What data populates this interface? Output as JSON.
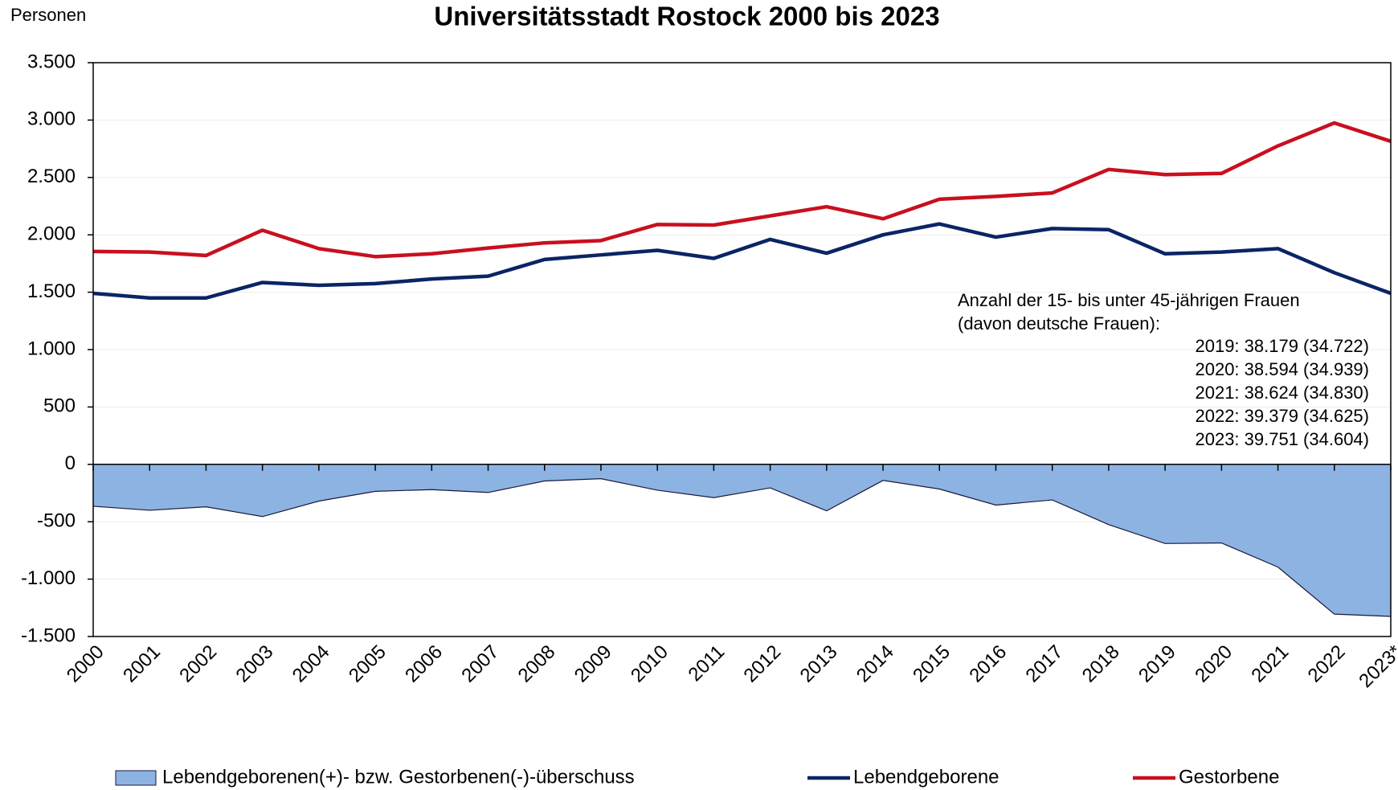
{
  "chart_data": {
    "type": "line",
    "title": "Universitätsstadt Rostock 2000 bis 2023",
    "y_label": "Personen",
    "categories": [
      "2000",
      "2001",
      "2002",
      "2003",
      "2004",
      "2005",
      "2006",
      "2007",
      "2008",
      "2009",
      "2010",
      "2011",
      "2012",
      "2013",
      "2014",
      "2015",
      "2016",
      "2017",
      "2018",
      "2019",
      "2020",
      "2021",
      "2022",
      "2023*"
    ],
    "series": [
      {
        "name": "Lebendgeborenen(+)- bzw. Gestorbenen(-)-überschuss",
        "kind": "area",
        "color": "#8db3e2",
        "values": [
          -365,
          -400,
          -370,
          -455,
          -320,
          -235,
          -220,
          -245,
          -145,
          -125,
          -225,
          -290,
          -205,
          -405,
          -140,
          -215,
          -355,
          -310,
          -525,
          -690,
          -685,
          -895,
          -1305,
          -1325
        ]
      },
      {
        "name": "Lebendgeborene",
        "kind": "line",
        "color": "#0a2466",
        "values": [
          1490,
          1450,
          1450,
          1585,
          1560,
          1575,
          1615,
          1640,
          1785,
          1825,
          1865,
          1795,
          1960,
          1840,
          2000,
          2095,
          1980,
          2055,
          2045,
          1835,
          1850,
          1880,
          1670,
          1490
        ]
      },
      {
        "name": "Gestorbene",
        "kind": "line",
        "color": "#c8101e",
        "values": [
          1855,
          1850,
          1820,
          2040,
          1880,
          1810,
          1835,
          1885,
          1930,
          1950,
          2090,
          2085,
          2165,
          2245,
          2140,
          2310,
          2335,
          2365,
          2570,
          2525,
          2535,
          2775,
          2975,
          2815
        ]
      }
    ],
    "ylim": [
      -1500,
      3500
    ],
    "yticks": [
      {
        "value": -1500,
        "label": "-1.500"
      },
      {
        "value": -1000,
        "label": "-1.000"
      },
      -500,
      0,
      500,
      {
        "value": 1000,
        "label": "1.000"
      },
      {
        "value": 1500,
        "label": "1.500"
      },
      {
        "value": 2000,
        "label": "2.000"
      },
      {
        "value": 2500,
        "label": "2.500"
      },
      {
        "value": 3000,
        "label": "3.000"
      },
      {
        "value": 3500,
        "label": "3.500"
      }
    ],
    "grid": true,
    "annotation_head": [
      "Anzahl der 15- bis unter 45-jährigen Frauen",
      "(davon deutsche Frauen):"
    ],
    "annotation_lines": [
      "2019: 38.179 (34.722)",
      "2020: 38.594 (34.939)",
      "2021: 38.624 (34.830)",
      "2022: 39.379 (34.625)",
      "2023: 39.751 (34.604)"
    ],
    "legend": "bottom"
  }
}
